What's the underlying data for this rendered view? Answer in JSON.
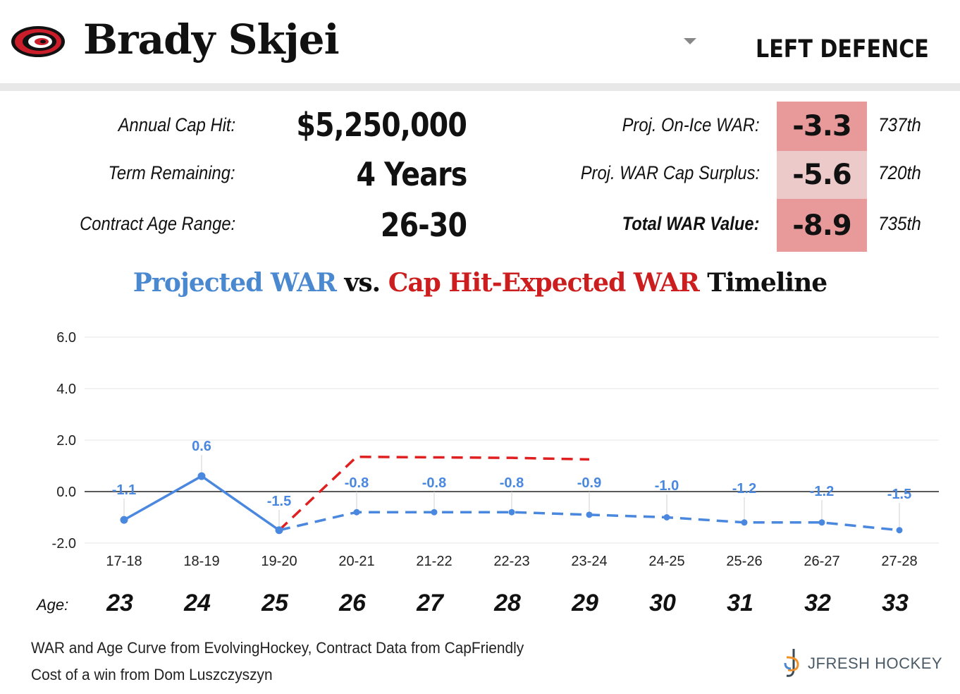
{
  "header": {
    "player_name": "Brady Skjei",
    "position": "LEFT DEFENCE",
    "team_logo_icon": "hurricanes-logo-icon"
  },
  "contract": {
    "cap_hit_label": "Annual Cap Hit:",
    "cap_hit_value": "$5,250,000",
    "term_label": "Term Remaining:",
    "term_value": "4 Years",
    "age_range_label": "Contract Age Range:",
    "age_range_value": "26-30"
  },
  "war": {
    "on_ice_label": "Proj. On-Ice WAR:",
    "on_ice_value": "-3.3",
    "on_ice_rank": "737th",
    "on_ice_color": "#e8999a",
    "surplus_label": "Proj. WAR Cap Surplus:",
    "surplus_value": "-5.6",
    "surplus_rank": "720th",
    "surplus_color": "#eccac9",
    "total_label": "Total WAR Value:",
    "total_value": "-8.9",
    "total_rank": "735th",
    "total_color": "#e8999a"
  },
  "chart_title": {
    "part1": "Projected WAR",
    "part2": " vs. ",
    "part3": "Cap Hit-Expected WAR",
    "part4": " Timeline",
    "color_projected": "#4a88d0",
    "color_expected": "#cc1e1e",
    "color_dark": "#111111"
  },
  "ages": {
    "label": "Age:",
    "values": [
      "23",
      "24",
      "25",
      "26",
      "27",
      "28",
      "29",
      "30",
      "31",
      "32",
      "33"
    ]
  },
  "chart_data": {
    "type": "line",
    "categories": [
      "17-18",
      "18-19",
      "19-20",
      "20-21",
      "21-22",
      "22-23",
      "23-24",
      "24-25",
      "25-26",
      "26-27",
      "27-28"
    ],
    "ylim": [
      -2.0,
      6.0
    ],
    "yticks": [
      "-2.0",
      "0.0",
      "2.0",
      "4.0",
      "6.0"
    ],
    "grid": true,
    "series": [
      {
        "values": [
          -1.1,
          0.6,
          -1.5,
          -0.8,
          -0.8,
          -0.8,
          -0.9,
          -1.0,
          -1.2,
          -1.2,
          -1.5
        ],
        "labels": [
          "-1.1",
          "0.6",
          "-1.5",
          "-0.8",
          "-0.8",
          "-0.8",
          "-0.9",
          "-1.0",
          "-1.2",
          "-1.2",
          "-1.5"
        ],
        "color": "#4a88e0",
        "actual_through_index": 2
      },
      {
        "values": [
          null,
          null,
          -1.5,
          1.35,
          1.33,
          1.31,
          1.25,
          null,
          null,
          null,
          null
        ],
        "color": "#e02020",
        "style": "dashed"
      }
    ]
  },
  "footer": {
    "line1": "WAR and Age Curve from EvolvingHockey, Contract Data from CapFriendly",
    "line2": "Cost of a win from Dom Luszczyszyn",
    "brand": "JFRESH HOCKEY"
  }
}
